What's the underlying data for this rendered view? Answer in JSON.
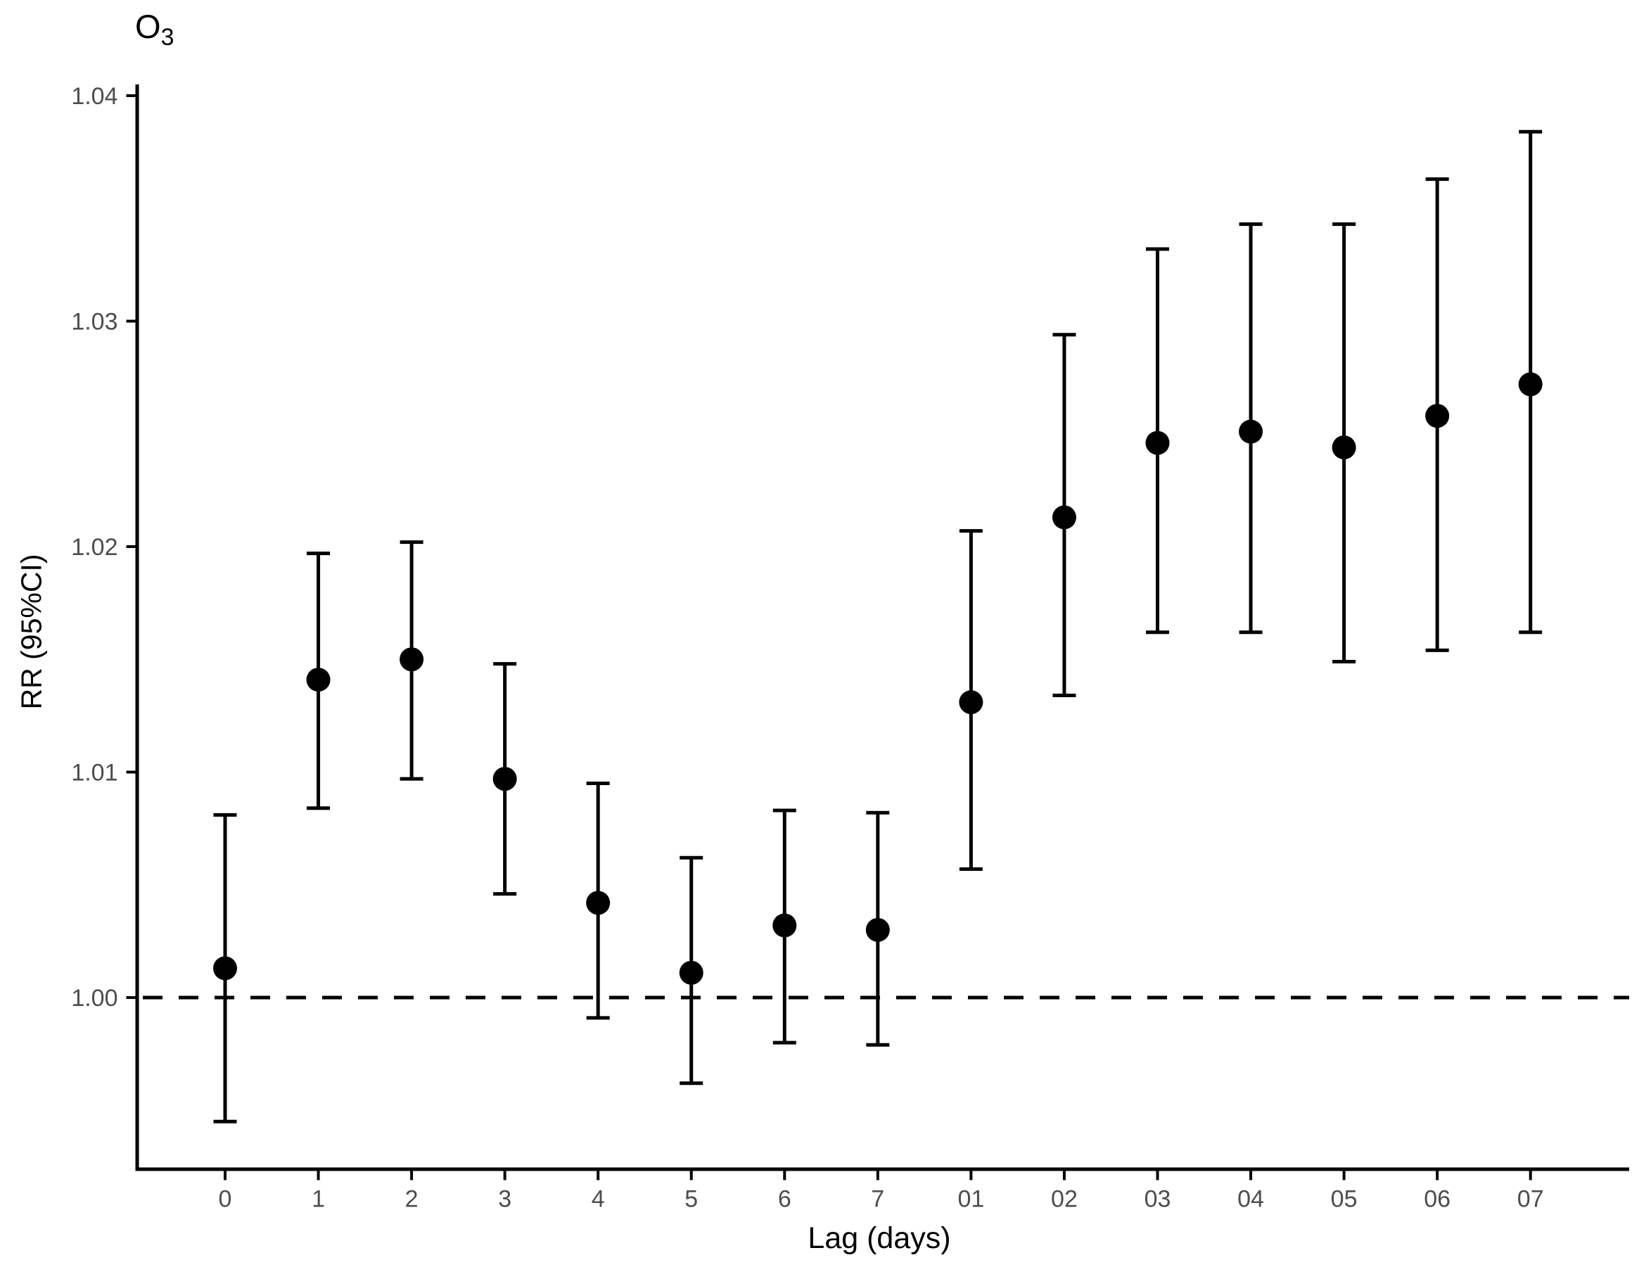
{
  "chart_data": {
    "type": "scatter",
    "subtype": "point-estimates-with-95ci-error-bars",
    "title_main": "O",
    "title_sub": "3",
    "xlabel": "Lag (days)",
    "ylabel": "RR (95%CI)",
    "categories": [
      "0",
      "1",
      "2",
      "3",
      "4",
      "5",
      "6",
      "7",
      "01",
      "02",
      "03",
      "04",
      "05",
      "06",
      "07"
    ],
    "series": [
      {
        "name": "RR point estimate",
        "values": [
          1.0013,
          1.0141,
          1.015,
          1.0097,
          1.0042,
          1.0011,
          1.0032,
          1.003,
          1.0131,
          1.0213,
          1.0246,
          1.0251,
          1.0244,
          1.0258,
          1.0272
        ]
      },
      {
        "name": "CI lower bound",
        "values": [
          0.9945,
          1.0084,
          1.0097,
          1.0046,
          0.9991,
          0.9962,
          0.998,
          0.9979,
          1.0057,
          1.0134,
          1.0162,
          1.0162,
          1.0149,
          1.0154,
          1.0162
        ]
      },
      {
        "name": "CI upper bound",
        "values": [
          1.0081,
          1.0197,
          1.0202,
          1.0148,
          1.0095,
          1.0062,
          1.0083,
          1.0082,
          1.0207,
          1.0294,
          1.0332,
          1.0343,
          1.0343,
          1.0363,
          1.0384
        ]
      }
    ],
    "y_ticks": [
      {
        "value": 1.0,
        "label": "1.00"
      },
      {
        "value": 1.01,
        "label": "1.01"
      },
      {
        "value": 1.02,
        "label": "1.02"
      },
      {
        "value": 1.03,
        "label": "1.03"
      },
      {
        "value": 1.04,
        "label": "1.04"
      }
    ],
    "reference_line": {
      "value": 1.0,
      "style": "dashed"
    },
    "ylim": [
      0.9924,
      1.0415
    ],
    "grid": false,
    "legend": false,
    "marker": "filled-circle",
    "colors": {
      "marker": "#000000",
      "error_bar": "#000000",
      "axis": "#000000",
      "reference_line": "#000000",
      "tick_label": "#4d4d4d",
      "background": "#ffffff"
    }
  }
}
